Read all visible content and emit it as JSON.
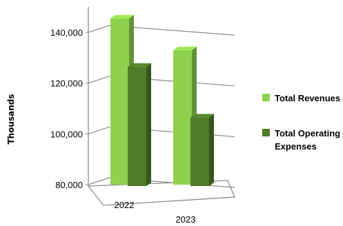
{
  "chart_data": {
    "type": "bar",
    "style": "3d-clustered-column",
    "categories": [
      "2022",
      "2023"
    ],
    "series": [
      {
        "name": "Total Revenues",
        "values": [
          145500,
          133000
        ],
        "color": "#8fd14f"
      },
      {
        "name": "Total Operating Expenses",
        "values": [
          126500,
          106500
        ],
        "color": "#4f7a28"
      }
    ],
    "ylabel": "Thousands",
    "ylim": [
      80000,
      140000
    ],
    "yticks": [
      80000,
      100000,
      120000,
      140000
    ],
    "ytick_labels": [
      "80,000",
      "100,000",
      "120,000",
      "140,000"
    ],
    "grid": true,
    "legend_position": "right",
    "legend_lines": [
      [
        "Total Revenues"
      ],
      [
        "Total Operating",
        "Expenses"
      ]
    ]
  }
}
